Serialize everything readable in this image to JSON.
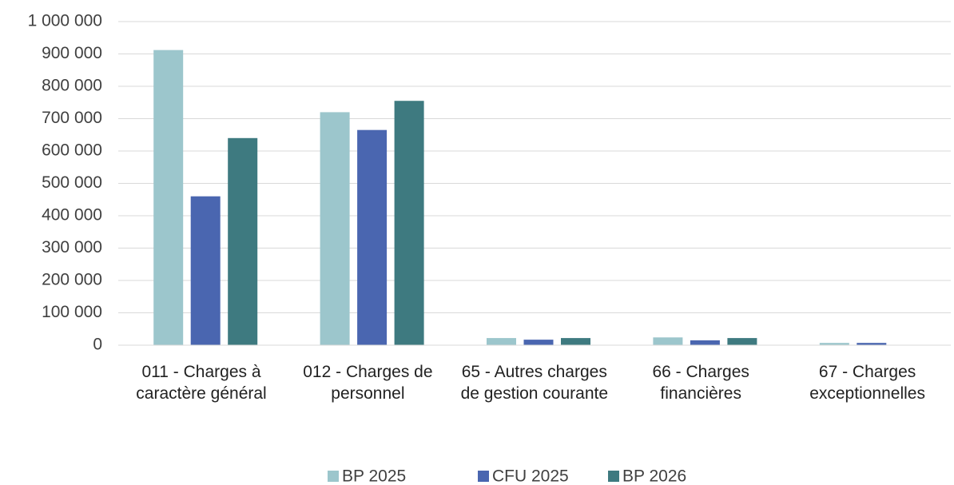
{
  "chart_data": {
    "type": "bar",
    "categories": [
      "011 - Charges à caractère général",
      "012 - Charges de personnel",
      "65 - Autres charges de gestion courante",
      "66 - Charges financières",
      "67 - Charges exceptionnelles"
    ],
    "series": [
      {
        "name": "BP 2025",
        "color": "#9cc6cc",
        "values": [
          912000,
          720000,
          22000,
          24000,
          7000
        ]
      },
      {
        "name": "CFU 2025",
        "color": "#4a66b0",
        "values": [
          460000,
          665000,
          17000,
          15000,
          7000
        ]
      },
      {
        "name": "BP 2026",
        "color": "#3e7a80",
        "values": [
          640000,
          755000,
          22000,
          22000,
          0
        ]
      }
    ],
    "ylim": [
      0,
      1000000
    ],
    "yticks": [
      0,
      {
        "value": 100000,
        "label": "100 000"
      },
      {
        "value": 200000,
        "label": "200 000"
      },
      {
        "value": 300000,
        "label": "300 000"
      },
      {
        "value": 400000,
        "label": "400 000"
      },
      {
        "value": 500000,
        "label": "500 000"
      },
      {
        "value": 600000,
        "label": "600 000"
      },
      {
        "value": 700000,
        "label": "700 000"
      },
      {
        "value": 800000,
        "label": "800 000"
      },
      {
        "value": 900000,
        "label": "900 000"
      },
      {
        "value": 1000000,
        "label": "1 000 000"
      }
    ],
    "grid": true,
    "legend": "bottom"
  }
}
